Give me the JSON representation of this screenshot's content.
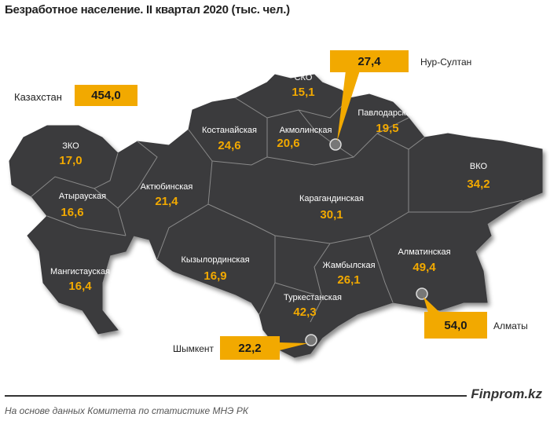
{
  "title": "Безработное население. II квартал 2020  (тыс. чел.)",
  "total": {
    "label": "Казахстан",
    "value": "454,0"
  },
  "regions": [
    {
      "name": "ЗКО",
      "value": "17,0"
    },
    {
      "name": "Атырауская",
      "value": "16,6"
    },
    {
      "name": "Мангистауская",
      "value": "16,4"
    },
    {
      "name": "Актюбинская",
      "value": "21,4"
    },
    {
      "name": "Костанайская",
      "value": "24,6"
    },
    {
      "name": "СКО",
      "value": "15,1"
    },
    {
      "name": "Акмолинская",
      "value": "20,6"
    },
    {
      "name": "Павлодарская",
      "value": "19,5"
    },
    {
      "name": "ВКО",
      "value": "34,2"
    },
    {
      "name": "Карагандинская",
      "value": "30,1"
    },
    {
      "name": "Кызылординская",
      "value": "16,9"
    },
    {
      "name": "Жамбылская",
      "value": "26,1"
    },
    {
      "name": "Алматинская",
      "value": "49,4"
    },
    {
      "name": "Туркестанская",
      "value": "42,3"
    }
  ],
  "cities": [
    {
      "name": "Нур-Султан",
      "value": "27,4"
    },
    {
      "name": "Алматы",
      "value": "54,0"
    },
    {
      "name": "Шымкент",
      "value": "22,2"
    }
  ],
  "colors": {
    "map": "#3a3a3c",
    "accent": "#f2a900",
    "border": "#8a8a8a"
  },
  "footer": {
    "brand": "Finprom.kz",
    "source": "На основе данных  Комитета по статистике МНЭ РК"
  }
}
